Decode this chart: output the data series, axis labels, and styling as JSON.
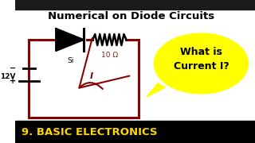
{
  "title": "Numerical on Diode Circuits",
  "footer_text": "9. BASIC ELECTRONICS",
  "footer_bg": "#000000",
  "footer_fg": "#FFD700",
  "bg_color": "#FFFFFF",
  "circuit_color": "#8B0000",
  "circuit_lw": 2.2,
  "battery_voltage": "12V",
  "resistor_label": "10 Ω",
  "diode_label": "Si",
  "current_label": "I",
  "bubble_text": "What is\nCurrent I?",
  "bubble_bg": "#FFFF00",
  "title_fontsize": 9.5,
  "footer_fontsize": 9.5,
  "top_bar_color": "#1a1a1a",
  "bottom_bar_color": "#000000"
}
